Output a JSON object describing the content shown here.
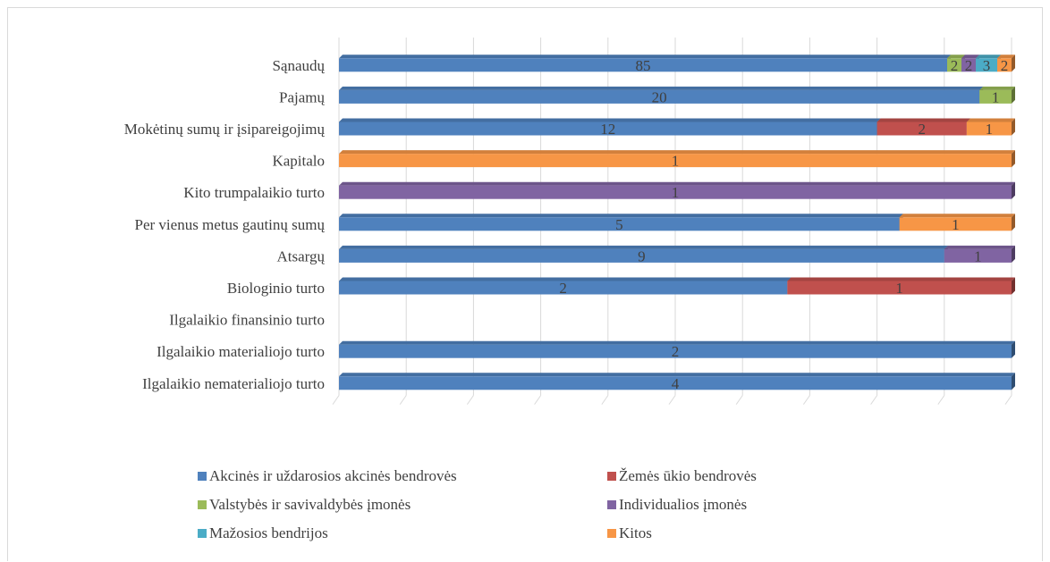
{
  "chart_data": {
    "type": "bar",
    "orientation": "horizontal",
    "stacked": "percent",
    "style": "3d",
    "categories": [
      "Sąnaudų",
      "Pajamų",
      "Mokėtinų sumų ir įsipareigojimų",
      "Kapitalo",
      "Kito trumpalaikio turto",
      "Per vienus metus gautinų sumų",
      "Atsargų",
      "Biologinio turto",
      "Ilgalaikio finansinio turto",
      "Ilgalaikio materialiojo turto",
      "Ilgalaikio nematerialiojo turto"
    ],
    "series": [
      {
        "name": "Akcinės ir uždarosios akcinės bendrovės",
        "color": "#4f81bd",
        "values": [
          85,
          20,
          12,
          null,
          null,
          5,
          9,
          2,
          null,
          2,
          4
        ]
      },
      {
        "name": "Žemės ūkio bendrovės",
        "color": "#c0504d",
        "values": [
          null,
          null,
          2,
          null,
          null,
          null,
          null,
          1,
          null,
          null,
          null
        ]
      },
      {
        "name": "Valstybės ir savivaldybės įmonės",
        "color": "#9bbb59",
        "values": [
          2,
          1,
          null,
          null,
          null,
          null,
          null,
          null,
          null,
          null,
          null
        ]
      },
      {
        "name": "Individualios įmonės",
        "color": "#8064a2",
        "values": [
          2,
          null,
          null,
          null,
          1,
          null,
          1,
          null,
          null,
          null,
          null
        ]
      },
      {
        "name": "Mažosios bendrijos",
        "color": "#4bacc6",
        "values": [
          3,
          null,
          null,
          null,
          null,
          null,
          null,
          null,
          null,
          null,
          null
        ]
      },
      {
        "name": "Kitos",
        "color": "#f79646",
        "values": [
          2,
          null,
          1,
          1,
          null,
          1,
          null,
          null,
          null,
          null,
          null
        ]
      }
    ],
    "gridlines": true,
    "legend_position": "bottom",
    "title": "",
    "xlabel": "",
    "ylabel": ""
  }
}
